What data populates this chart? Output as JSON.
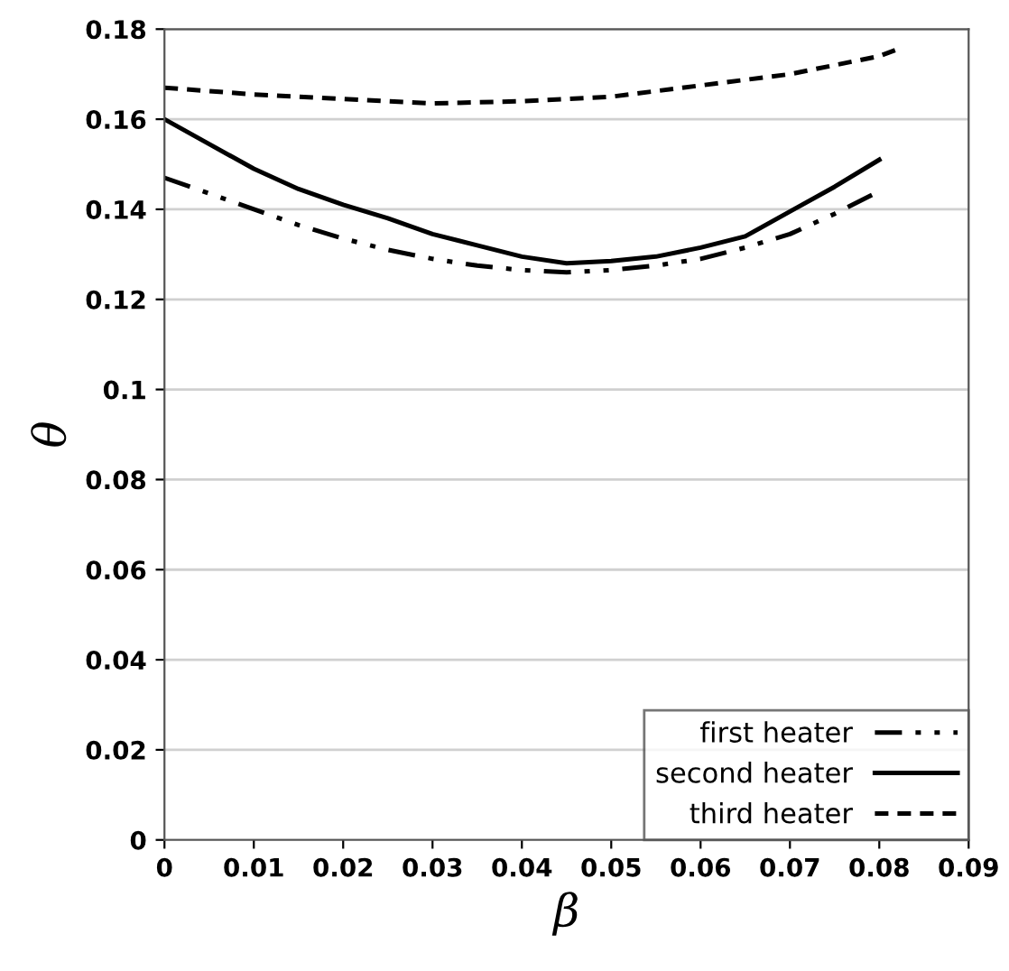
{
  "chart_data": {
    "type": "line",
    "xlabel": "β",
    "ylabel": "θ",
    "xlim": [
      0,
      0.09
    ],
    "ylim": [
      0,
      0.18
    ],
    "xticks": [
      {
        "value": 0,
        "label": "0"
      },
      0.01,
      0.02,
      0.03,
      0.04,
      0.05,
      0.06,
      0.07,
      0.08,
      0.09
    ],
    "yticks": [
      {
        "value": 0,
        "label": "0"
      },
      0.02,
      0.04,
      0.06,
      0.08,
      {
        "value": 0.1,
        "label": "0.1"
      },
      0.12,
      0.14,
      0.16,
      0.18
    ],
    "grid": "y",
    "legend": "bottom right",
    "marker": "none",
    "series": [
      {
        "name": "first heater",
        "color": "#000000",
        "line_style": "dashdotdot",
        "x": [
          0,
          0.005,
          0.01,
          0.015,
          0.02,
          0.025,
          0.03,
          0.035,
          0.04,
          0.045,
          0.05,
          0.055,
          0.06,
          0.065,
          0.07,
          0.075,
          0.08
        ],
        "values": [
          0.147,
          0.1435,
          0.14,
          0.1365,
          0.1335,
          0.131,
          0.129,
          0.1275,
          0.1265,
          0.126,
          0.1265,
          0.1275,
          0.129,
          0.1315,
          0.1345,
          0.139,
          0.144
        ]
      },
      {
        "name": "second heater",
        "color": "#000000",
        "line_style": "solid",
        "x": [
          0,
          0.005,
          0.01,
          0.015,
          0.02,
          0.025,
          0.03,
          0.035,
          0.04,
          0.045,
          0.05,
          0.055,
          0.06,
          0.065,
          0.07,
          0.075,
          0.08
        ],
        "values": [
          0.16,
          0.1545,
          0.149,
          0.1445,
          0.141,
          0.138,
          0.1345,
          0.132,
          0.1295,
          0.128,
          0.1285,
          0.1295,
          0.1315,
          0.134,
          0.1395,
          0.145,
          0.151
        ]
      },
      {
        "name": "third heater",
        "color": "#000000",
        "line_style": "dashed",
        "x": [
          0,
          0.01,
          0.02,
          0.03,
          0.04,
          0.05,
          0.06,
          0.07,
          0.08,
          0.082
        ],
        "values": [
          0.167,
          0.1655,
          0.1645,
          0.1635,
          0.164,
          0.165,
          0.1675,
          0.17,
          0.174,
          0.1755
        ]
      }
    ]
  }
}
